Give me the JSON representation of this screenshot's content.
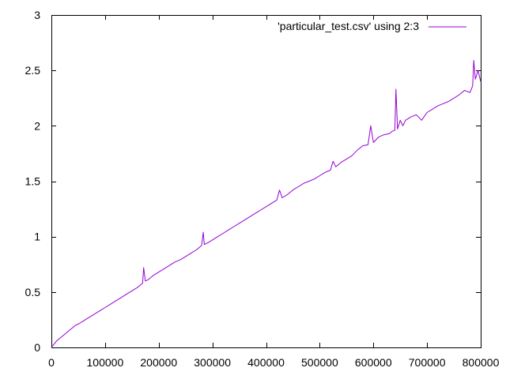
{
  "chart_data": {
    "type": "line",
    "title": "",
    "xlabel": "",
    "ylabel": "",
    "xlim": [
      0,
      800000
    ],
    "ylim": [
      0,
      3
    ],
    "x_ticks": [
      0,
      100000,
      200000,
      300000,
      400000,
      500000,
      600000,
      700000,
      800000
    ],
    "x_tick_labels": [
      "0",
      "100000",
      "200000",
      "300000",
      "400000",
      "500000",
      "600000",
      "700000",
      "800000"
    ],
    "y_ticks": [
      0,
      0.5,
      1,
      1.5,
      2,
      2.5,
      3
    ],
    "y_tick_labels": [
      "0",
      "0.5",
      "1",
      "1.5",
      "2",
      "2.5",
      "3"
    ],
    "grid": false,
    "legend_position": "top-right",
    "series": [
      {
        "name": "'particular_test.csv' using 2:3",
        "color": "#9400d3",
        "x": [
          0,
          5000,
          10000,
          15000,
          20000,
          25000,
          30000,
          35000,
          40000,
          45000,
          50000,
          60000,
          70000,
          80000,
          90000,
          100000,
          110000,
          120000,
          130000,
          140000,
          150000,
          160000,
          165000,
          170000,
          172000,
          175000,
          180000,
          190000,
          200000,
          210000,
          220000,
          230000,
          240000,
          250000,
          260000,
          270000,
          275000,
          280000,
          283000,
          285000,
          290000,
          300000,
          310000,
          320000,
          330000,
          340000,
          350000,
          360000,
          370000,
          380000,
          390000,
          400000,
          410000,
          420000,
          425000,
          430000,
          440000,
          450000,
          460000,
          470000,
          480000,
          490000,
          500000,
          510000,
          520000,
          525000,
          530000,
          540000,
          550000,
          560000,
          570000,
          580000,
          590000,
          595000,
          600000,
          610000,
          620000,
          630000,
          635000,
          640000,
          642000,
          645000,
          650000,
          655000,
          660000,
          670000,
          680000,
          690000,
          700000,
          710000,
          720000,
          730000,
          740000,
          750000,
          760000,
          770000,
          780000,
          785000,
          787000,
          790000,
          795000,
          800000
        ],
        "y": [
          0,
          0.03,
          0.06,
          0.08,
          0.1,
          0.12,
          0.14,
          0.16,
          0.18,
          0.2,
          0.21,
          0.24,
          0.27,
          0.3,
          0.33,
          0.36,
          0.39,
          0.42,
          0.45,
          0.48,
          0.51,
          0.54,
          0.56,
          0.58,
          0.72,
          0.6,
          0.61,
          0.65,
          0.68,
          0.71,
          0.74,
          0.77,
          0.79,
          0.82,
          0.85,
          0.88,
          0.9,
          0.92,
          1.04,
          0.93,
          0.94,
          0.97,
          1.0,
          1.03,
          1.06,
          1.09,
          1.12,
          1.15,
          1.18,
          1.21,
          1.24,
          1.27,
          1.3,
          1.33,
          1.42,
          1.35,
          1.38,
          1.42,
          1.45,
          1.48,
          1.5,
          1.52,
          1.55,
          1.58,
          1.6,
          1.68,
          1.63,
          1.67,
          1.7,
          1.73,
          1.78,
          1.82,
          1.83,
          2.0,
          1.85,
          1.9,
          1.92,
          1.93,
          1.95,
          1.96,
          2.33,
          1.97,
          2.05,
          2.0,
          2.05,
          2.08,
          2.1,
          2.05,
          2.12,
          2.15,
          2.18,
          2.2,
          2.22,
          2.25,
          2.28,
          2.32,
          2.3,
          2.36,
          2.59,
          2.42,
          2.5,
          2.4
        ]
      }
    ]
  }
}
